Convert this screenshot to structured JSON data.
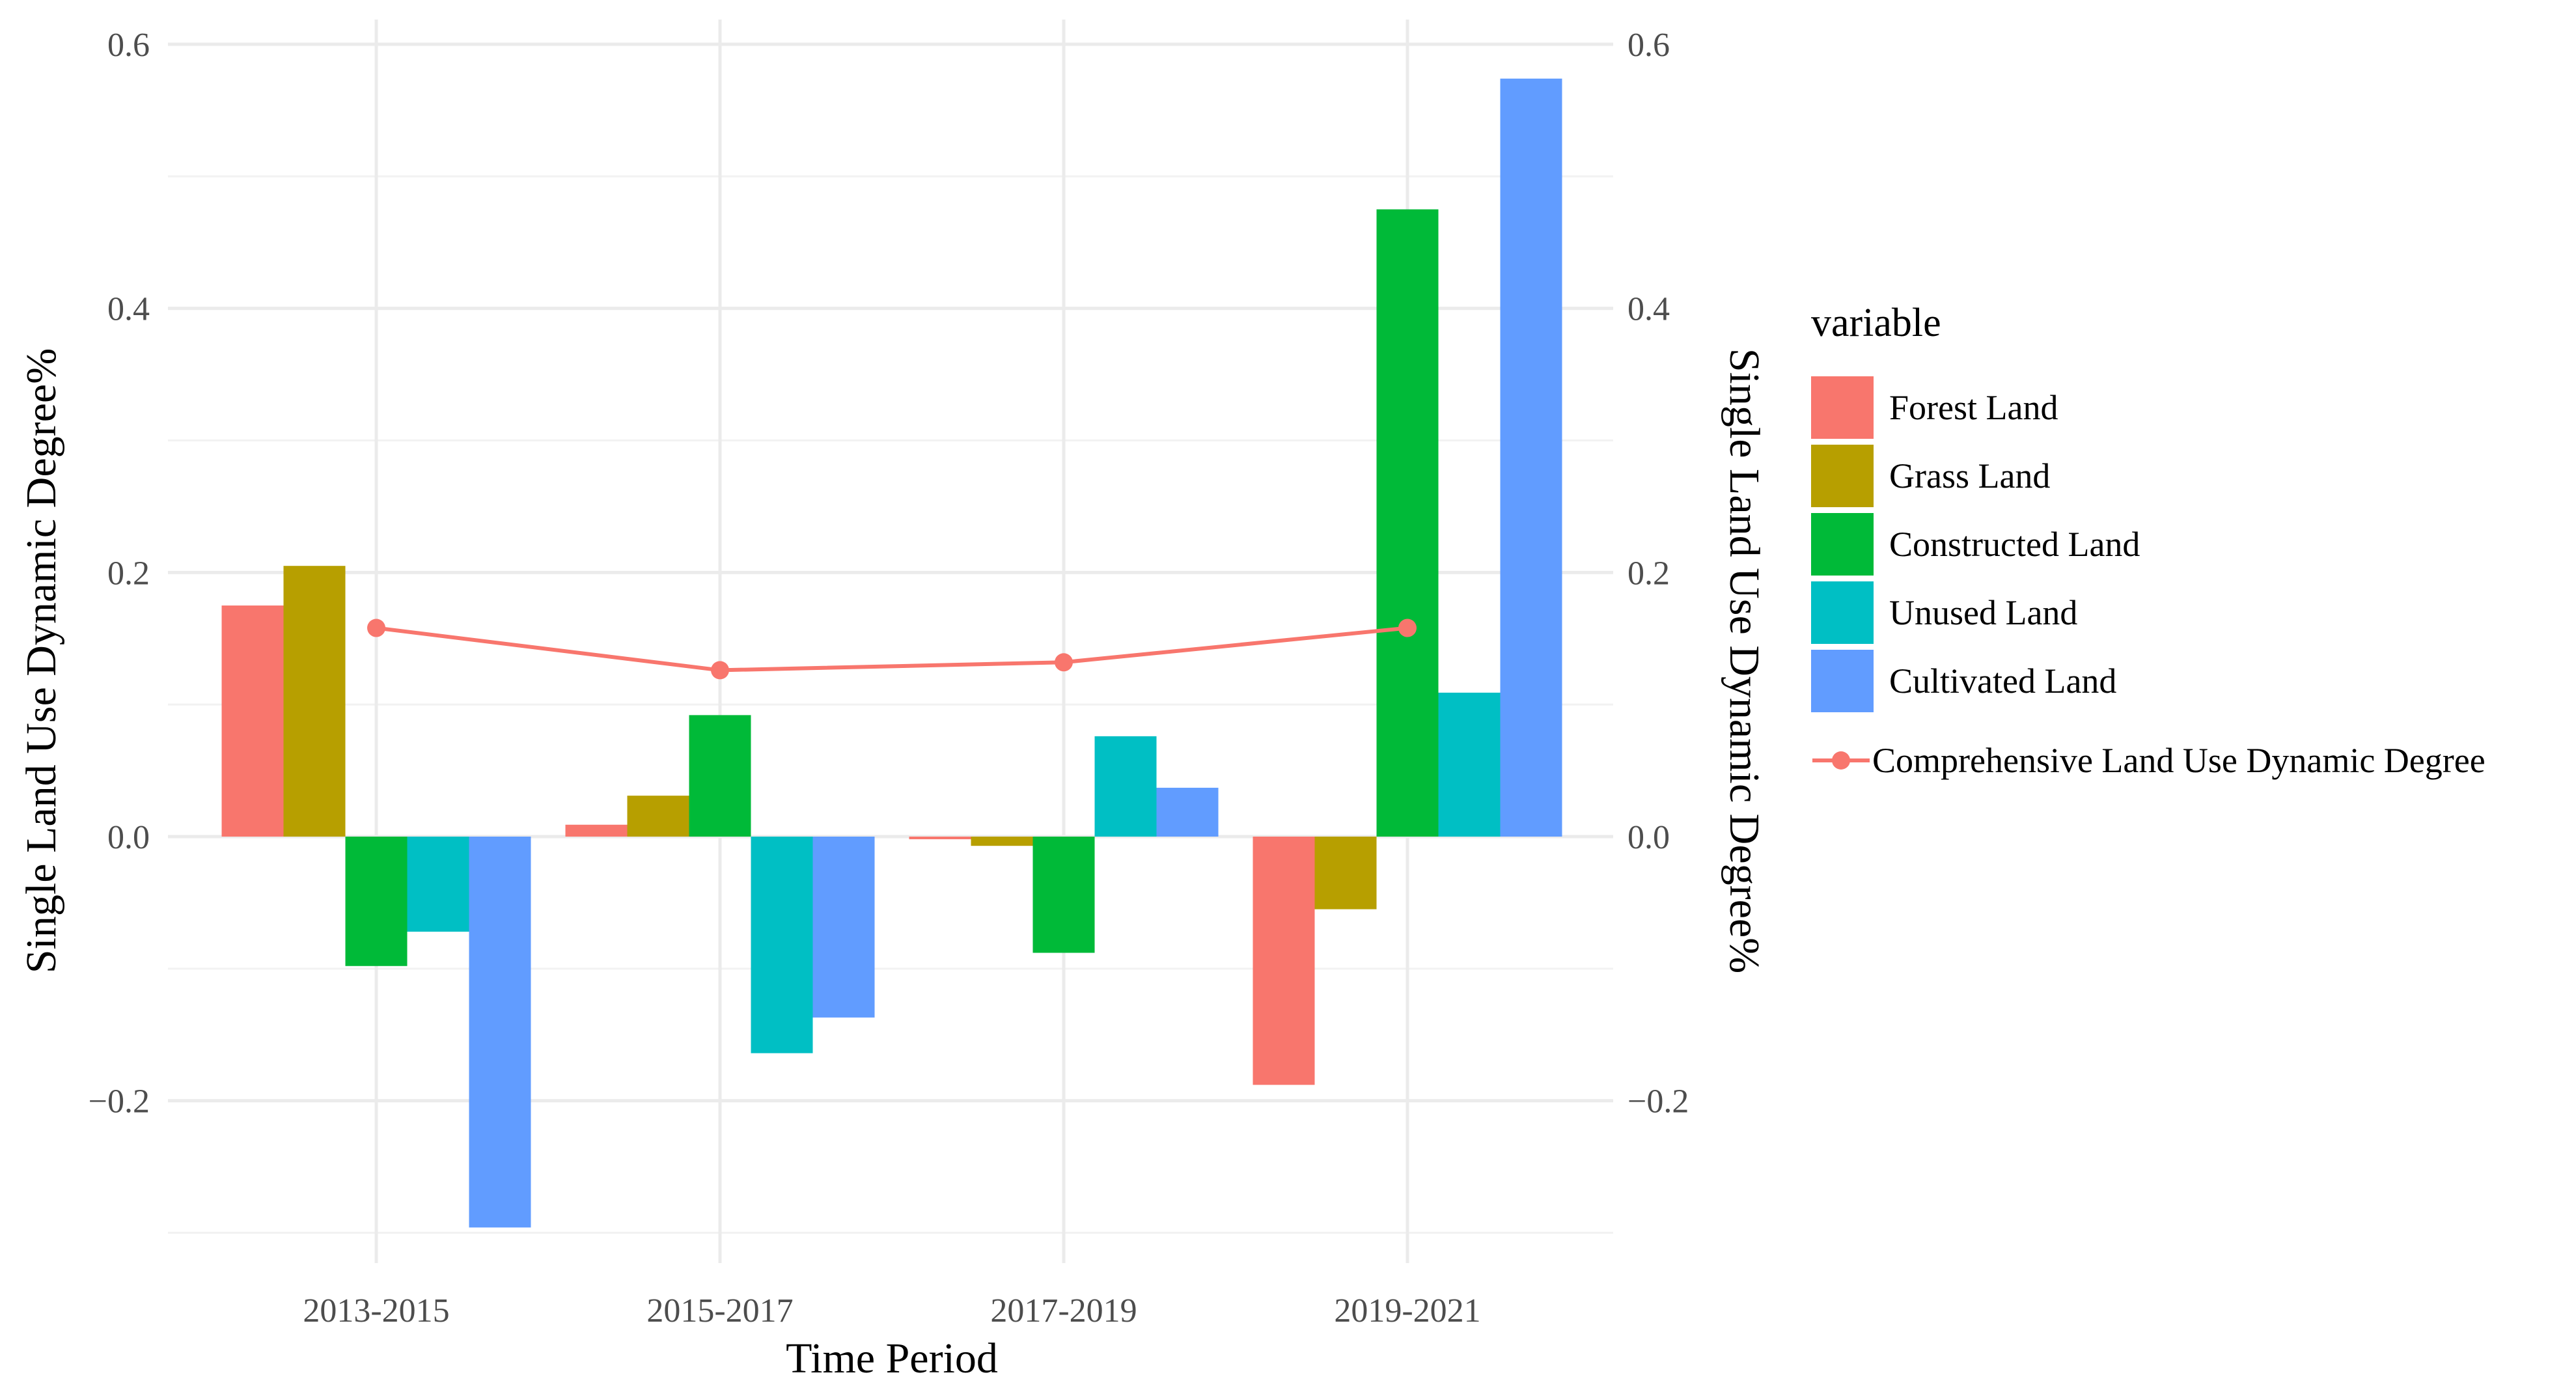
{
  "chart_data": {
    "type": "bar",
    "title": "",
    "xlabel": "Time Period",
    "ylabel": "Single Land Use Dynamic Degree%",
    "ylabel_right": "Single Land Use Dynamic Degree%",
    "categories": [
      "2013-2015",
      "2015-2017",
      "2017-2019",
      "2019-2021"
    ],
    "ylim": [
      -0.3,
      0.6
    ],
    "y_ticks": [
      {
        "value": -0.2,
        "label": "−0.2"
      },
      {
        "value": 0.0,
        "label": "0.0"
      },
      {
        "value": 0.2,
        "label": "0.2"
      },
      {
        "value": 0.4,
        "label": "0.4"
      },
      {
        "value": 0.6,
        "label": "0.6"
      }
    ],
    "grid": true,
    "legend_title": "variable",
    "legend_position": "right",
    "series": [
      {
        "name": "Forest Land",
        "color": "#f8766d",
        "values": [
          0.175,
          0.009,
          -0.002,
          -0.188
        ]
      },
      {
        "name": "Grass Land",
        "color": "#b79f00",
        "values": [
          0.205,
          0.031,
          -0.007,
          -0.055
        ]
      },
      {
        "name": "Constructed Land",
        "color": "#00ba38",
        "values": [
          -0.098,
          0.092,
          -0.088,
          0.475
        ]
      },
      {
        "name": "Unused Land",
        "color": "#00bfc4",
        "values": [
          -0.072,
          -0.164,
          0.076,
          0.109
        ]
      },
      {
        "name": "Cultivated Land",
        "color": "#619cff",
        "values": [
          -0.296,
          -0.137,
          0.037,
          0.574
        ]
      }
    ],
    "line_series": {
      "name": "Comprehensive Land Use Dynamic Degree",
      "color": "#f8766d",
      "values": [
        0.158,
        0.126,
        0.132,
        0.158
      ]
    }
  }
}
